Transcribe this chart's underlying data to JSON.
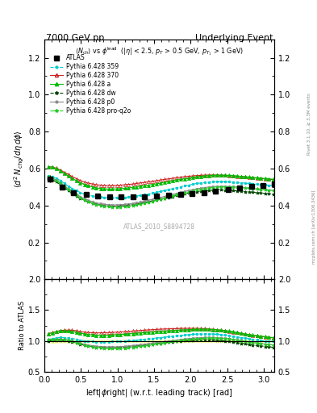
{
  "title_left": "7000 GeV pp",
  "title_right": "Underlying Event",
  "watermark": "ATLAS_2010_S8894728",
  "rivet_label": "Rivet 3.1.10, ≥ 3.3M events",
  "mcplots_label": "mcplots.cern.ch [arXiv:1306.3436]",
  "xlim": [
    0,
    3.14159
  ],
  "ylim_main": [
    0.0,
    1.3
  ],
  "ylim_ratio": [
    0.5,
    2.0
  ],
  "yticks_main": [
    0.2,
    0.4,
    0.6,
    0.8,
    1.0,
    1.2
  ],
  "yticks_ratio": [
    0.5,
    1.0,
    1.5,
    2.0
  ],
  "series": {
    "ATLAS": {
      "color": "#000000",
      "marker": "s",
      "markersize": 4,
      "linestyle": "none",
      "label": "ATLAS",
      "x": [
        0.08,
        0.24,
        0.4,
        0.57,
        0.73,
        0.89,
        1.05,
        1.21,
        1.37,
        1.53,
        1.7,
        1.86,
        2.02,
        2.18,
        2.34,
        2.51,
        2.67,
        2.83,
        2.99,
        3.14
      ],
      "y": [
        0.545,
        0.5,
        0.47,
        0.46,
        0.452,
        0.447,
        0.445,
        0.445,
        0.447,
        0.45,
        0.455,
        0.46,
        0.465,
        0.47,
        0.477,
        0.485,
        0.495,
        0.504,
        0.51,
        0.515
      ],
      "yerr": [
        0.018,
        0.012,
        0.01,
        0.009,
        0.008,
        0.008,
        0.008,
        0.008,
        0.008,
        0.008,
        0.008,
        0.008,
        0.008,
        0.008,
        0.008,
        0.008,
        0.008,
        0.008,
        0.008,
        0.008
      ]
    },
    "Pythia6428_359": {
      "color": "#00CCCC",
      "marker": "o",
      "markersize": 2,
      "linestyle": "--",
      "linewidth": 0.8,
      "label": "Pythia 6.428 359",
      "x": [
        0.05,
        0.11,
        0.16,
        0.22,
        0.27,
        0.33,
        0.38,
        0.44,
        0.49,
        0.55,
        0.6,
        0.66,
        0.71,
        0.77,
        0.82,
        0.88,
        0.93,
        0.99,
        1.04,
        1.1,
        1.15,
        1.21,
        1.26,
        1.31,
        1.37,
        1.42,
        1.48,
        1.53,
        1.59,
        1.64,
        1.7,
        1.75,
        1.81,
        1.86,
        1.92,
        1.97,
        2.03,
        2.08,
        2.14,
        2.19,
        2.25,
        2.3,
        2.36,
        2.41,
        2.47,
        2.52,
        2.58,
        2.63,
        2.69,
        2.74,
        2.8,
        2.85,
        2.91,
        2.96,
        3.02,
        3.07,
        3.13
      ],
      "y": [
        0.56,
        0.555,
        0.548,
        0.535,
        0.52,
        0.505,
        0.492,
        0.48,
        0.47,
        0.462,
        0.456,
        0.451,
        0.447,
        0.445,
        0.443,
        0.442,
        0.442,
        0.442,
        0.443,
        0.444,
        0.446,
        0.448,
        0.451,
        0.454,
        0.458,
        0.462,
        0.467,
        0.471,
        0.476,
        0.481,
        0.486,
        0.491,
        0.496,
        0.501,
        0.506,
        0.51,
        0.515,
        0.519,
        0.522,
        0.525,
        0.527,
        0.528,
        0.529,
        0.529,
        0.529,
        0.528,
        0.527,
        0.525,
        0.523,
        0.521,
        0.519,
        0.517,
        0.515,
        0.513,
        0.511,
        0.51,
        0.509
      ]
    },
    "Pythia6428_370": {
      "color": "#CC2222",
      "marker": "^",
      "markersize": 3,
      "linestyle": "-",
      "linewidth": 0.8,
      "markerfacecolor": "none",
      "markeredgecolor": "#CC2222",
      "label": "Pythia 6.428 370",
      "x": [
        0.05,
        0.11,
        0.16,
        0.22,
        0.27,
        0.33,
        0.38,
        0.44,
        0.49,
        0.55,
        0.6,
        0.66,
        0.71,
        0.77,
        0.82,
        0.88,
        0.93,
        0.99,
        1.04,
        1.1,
        1.15,
        1.21,
        1.26,
        1.31,
        1.37,
        1.42,
        1.48,
        1.53,
        1.59,
        1.64,
        1.7,
        1.75,
        1.81,
        1.86,
        1.92,
        1.97,
        2.03,
        2.08,
        2.14,
        2.19,
        2.25,
        2.3,
        2.36,
        2.41,
        2.47,
        2.52,
        2.58,
        2.63,
        2.69,
        2.74,
        2.8,
        2.85,
        2.91,
        2.96,
        3.02,
        3.07,
        3.13
      ],
      "y": [
        0.61,
        0.608,
        0.602,
        0.592,
        0.58,
        0.568,
        0.556,
        0.545,
        0.535,
        0.527,
        0.521,
        0.516,
        0.512,
        0.51,
        0.509,
        0.508,
        0.508,
        0.509,
        0.51,
        0.512,
        0.514,
        0.516,
        0.519,
        0.522,
        0.525,
        0.528,
        0.531,
        0.534,
        0.538,
        0.541,
        0.544,
        0.547,
        0.55,
        0.553,
        0.556,
        0.558,
        0.56,
        0.562,
        0.563,
        0.564,
        0.565,
        0.565,
        0.565,
        0.564,
        0.563,
        0.562,
        0.56,
        0.558,
        0.556,
        0.554,
        0.552,
        0.55,
        0.548,
        0.546,
        0.544,
        0.542,
        0.54
      ]
    },
    "Pythia6428_a": {
      "color": "#00BB00",
      "marker": "^",
      "markersize": 3,
      "linestyle": "-",
      "linewidth": 0.8,
      "label": "Pythia 6.428 a",
      "x": [
        0.05,
        0.11,
        0.16,
        0.22,
        0.27,
        0.33,
        0.38,
        0.44,
        0.49,
        0.55,
        0.6,
        0.66,
        0.71,
        0.77,
        0.82,
        0.88,
        0.93,
        0.99,
        1.04,
        1.1,
        1.15,
        1.21,
        1.26,
        1.31,
        1.37,
        1.42,
        1.48,
        1.53,
        1.59,
        1.64,
        1.7,
        1.75,
        1.81,
        1.86,
        1.92,
        1.97,
        2.03,
        2.08,
        2.14,
        2.19,
        2.25,
        2.3,
        2.36,
        2.41,
        2.47,
        2.52,
        2.58,
        2.63,
        2.69,
        2.74,
        2.8,
        2.85,
        2.91,
        2.96,
        3.02,
        3.07,
        3.13
      ],
      "y": [
        0.61,
        0.607,
        0.6,
        0.588,
        0.574,
        0.56,
        0.546,
        0.534,
        0.523,
        0.514,
        0.506,
        0.5,
        0.495,
        0.492,
        0.49,
        0.489,
        0.489,
        0.49,
        0.491,
        0.493,
        0.495,
        0.498,
        0.501,
        0.504,
        0.507,
        0.51,
        0.514,
        0.517,
        0.521,
        0.525,
        0.529,
        0.533,
        0.537,
        0.541,
        0.545,
        0.548,
        0.552,
        0.555,
        0.558,
        0.56,
        0.562,
        0.563,
        0.564,
        0.564,
        0.564,
        0.563,
        0.562,
        0.56,
        0.558,
        0.556,
        0.554,
        0.552,
        0.55,
        0.548,
        0.546,
        0.544,
        0.542
      ]
    },
    "Pythia6428_dw": {
      "color": "#004400",
      "marker": "*",
      "markersize": 3,
      "linestyle": "--",
      "linewidth": 0.8,
      "label": "Pythia 6.428 dw",
      "x": [
        0.05,
        0.11,
        0.16,
        0.22,
        0.27,
        0.33,
        0.38,
        0.44,
        0.49,
        0.55,
        0.6,
        0.66,
        0.71,
        0.77,
        0.82,
        0.88,
        0.93,
        0.99,
        1.04,
        1.1,
        1.15,
        1.21,
        1.26,
        1.31,
        1.37,
        1.42,
        1.48,
        1.53,
        1.59,
        1.64,
        1.7,
        1.75,
        1.81,
        1.86,
        1.92,
        1.97,
        2.03,
        2.08,
        2.14,
        2.19,
        2.25,
        2.3,
        2.36,
        2.41,
        2.47,
        2.52,
        2.58,
        2.63,
        2.69,
        2.74,
        2.8,
        2.85,
        2.91,
        2.96,
        3.02,
        3.07,
        3.13
      ],
      "y": [
        0.545,
        0.538,
        0.528,
        0.512,
        0.496,
        0.48,
        0.465,
        0.451,
        0.439,
        0.428,
        0.419,
        0.412,
        0.406,
        0.402,
        0.399,
        0.397,
        0.396,
        0.396,
        0.397,
        0.399,
        0.401,
        0.404,
        0.407,
        0.411,
        0.415,
        0.419,
        0.424,
        0.429,
        0.434,
        0.439,
        0.444,
        0.449,
        0.454,
        0.459,
        0.463,
        0.467,
        0.471,
        0.475,
        0.478,
        0.48,
        0.482,
        0.483,
        0.484,
        0.484,
        0.483,
        0.482,
        0.481,
        0.479,
        0.477,
        0.475,
        0.473,
        0.471,
        0.469,
        0.467,
        0.465,
        0.463,
        0.461
      ]
    },
    "Pythia6428_p0": {
      "color": "#888888",
      "marker": "o",
      "markersize": 2,
      "linestyle": "-",
      "linewidth": 0.8,
      "markerfacecolor": "none",
      "markeredgecolor": "#888888",
      "label": "Pythia 6.428 p0",
      "x": [
        0.05,
        0.11,
        0.16,
        0.22,
        0.27,
        0.33,
        0.38,
        0.44,
        0.49,
        0.55,
        0.6,
        0.66,
        0.71,
        0.77,
        0.82,
        0.88,
        0.93,
        0.99,
        1.04,
        1.1,
        1.15,
        1.21,
        1.26,
        1.31,
        1.37,
        1.42,
        1.48,
        1.53,
        1.59,
        1.64,
        1.7,
        1.75,
        1.81,
        1.86,
        1.92,
        1.97,
        2.03,
        2.08,
        2.14,
        2.19,
        2.25,
        2.3,
        2.36,
        2.41,
        2.47,
        2.52,
        2.58,
        2.63,
        2.69,
        2.74,
        2.8,
        2.85,
        2.91,
        2.96,
        3.02,
        3.07,
        3.13
      ],
      "y": [
        0.555,
        0.548,
        0.537,
        0.522,
        0.506,
        0.49,
        0.475,
        0.461,
        0.448,
        0.437,
        0.428,
        0.42,
        0.414,
        0.41,
        0.406,
        0.404,
        0.403,
        0.403,
        0.404,
        0.406,
        0.408,
        0.411,
        0.415,
        0.419,
        0.423,
        0.428,
        0.433,
        0.438,
        0.443,
        0.449,
        0.454,
        0.46,
        0.465,
        0.471,
        0.476,
        0.481,
        0.486,
        0.49,
        0.494,
        0.497,
        0.5,
        0.502,
        0.503,
        0.504,
        0.504,
        0.503,
        0.502,
        0.5,
        0.498,
        0.496,
        0.494,
        0.491,
        0.489,
        0.487,
        0.485,
        0.483,
        0.481
      ]
    },
    "Pythia6428_proq2o": {
      "color": "#22CC22",
      "marker": "*",
      "markersize": 3,
      "linestyle": "-.",
      "linewidth": 0.8,
      "label": "Pythia 6.428 pro-q2o",
      "x": [
        0.05,
        0.11,
        0.16,
        0.22,
        0.27,
        0.33,
        0.38,
        0.44,
        0.49,
        0.55,
        0.6,
        0.66,
        0.71,
        0.77,
        0.82,
        0.88,
        0.93,
        0.99,
        1.04,
        1.1,
        1.15,
        1.21,
        1.26,
        1.31,
        1.37,
        1.42,
        1.48,
        1.53,
        1.59,
        1.64,
        1.7,
        1.75,
        1.81,
        1.86,
        1.92,
        1.97,
        2.03,
        2.08,
        2.14,
        2.19,
        2.25,
        2.3,
        2.36,
        2.41,
        2.47,
        2.52,
        2.58,
        2.63,
        2.69,
        2.74,
        2.8,
        2.85,
        2.91,
        2.96,
        3.02,
        3.07,
        3.13
      ],
      "y": [
        0.555,
        0.547,
        0.536,
        0.519,
        0.502,
        0.485,
        0.47,
        0.455,
        0.442,
        0.43,
        0.42,
        0.412,
        0.405,
        0.4,
        0.396,
        0.393,
        0.392,
        0.391,
        0.392,
        0.393,
        0.396,
        0.399,
        0.403,
        0.407,
        0.412,
        0.417,
        0.422,
        0.428,
        0.434,
        0.44,
        0.446,
        0.452,
        0.458,
        0.464,
        0.469,
        0.474,
        0.479,
        0.484,
        0.488,
        0.491,
        0.494,
        0.497,
        0.499,
        0.5,
        0.501,
        0.501,
        0.5,
        0.499,
        0.497,
        0.495,
        0.493,
        0.491,
        0.489,
        0.487,
        0.485,
        0.483,
        0.481
      ]
    }
  }
}
